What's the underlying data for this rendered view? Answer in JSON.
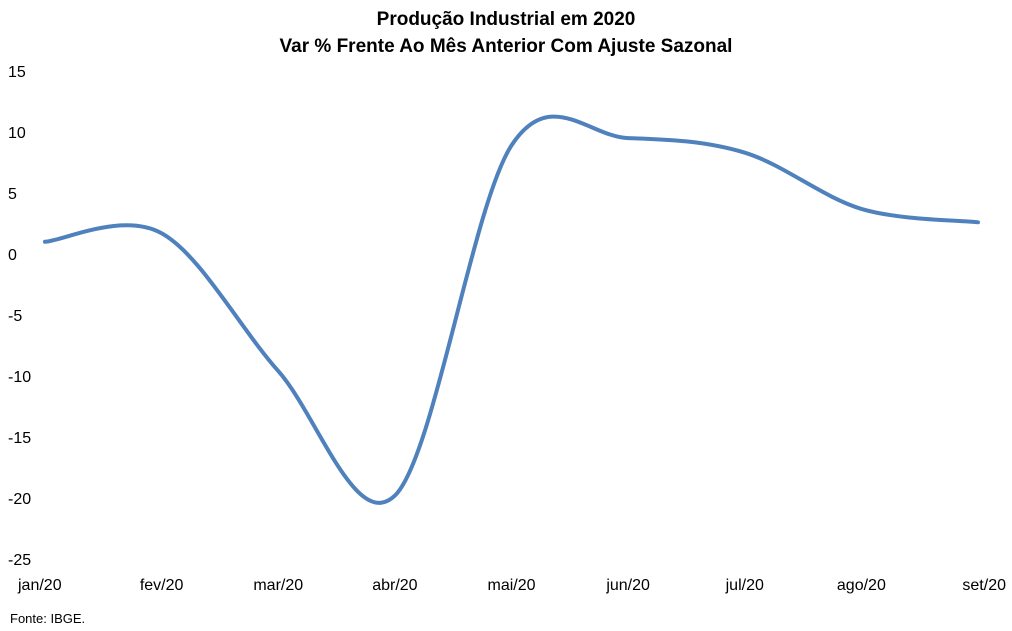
{
  "chart_data": {
    "type": "line",
    "title": "Produção Industrial em 2020",
    "subtitle": "Var % Frente Ao Mês Anterior Com Ajuste Sazonal",
    "xlabel": "",
    "ylabel": "",
    "categories": [
      "jan/20",
      "fev/20",
      "mar/20",
      "abr/20",
      "mai/20",
      "jun/20",
      "jul/20",
      "ago/20",
      "set/20"
    ],
    "series": [
      {
        "color": "#4F81BD",
        "values": [
          1.0,
          1.7,
          -9.6,
          -19.8,
          8.9,
          9.5,
          8.3,
          3.7,
          2.6
        ]
      }
    ],
    "ylim": [
      -25,
      15
    ],
    "yticks": [
      "15",
      "10",
      "5",
      "0",
      "-5",
      "-10",
      "-15",
      "-20",
      "-25"
    ],
    "smooth": true,
    "grid": false,
    "legend": "none"
  },
  "source": "Fonte: IBGE."
}
